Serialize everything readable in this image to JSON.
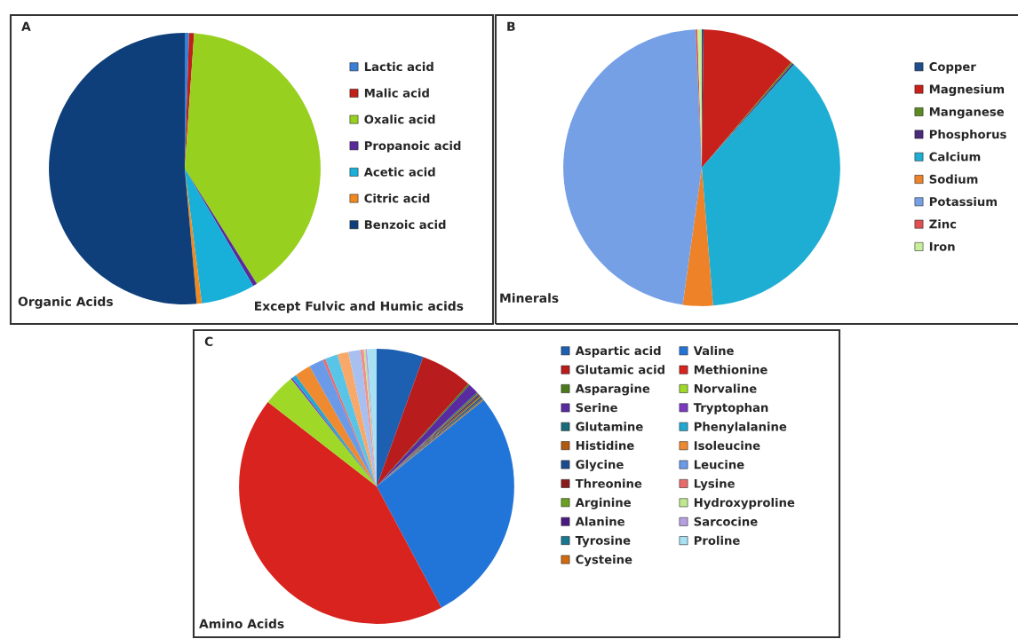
{
  "chart_data": [
    {
      "type": "pie",
      "title": "A",
      "legend": "right",
      "categories": [
        "Lactic acid",
        "Malic acid",
        "Oxalic acid",
        "Propanoic acid",
        "Acetic acid",
        "Citric acid",
        "Benzoic acid"
      ],
      "values": [
        0.5,
        0.6,
        40,
        0.5,
        6.4,
        0.6,
        51.4
      ],
      "colors": [
        "#3a7fd5",
        "#c0201a",
        "#98d020",
        "#5a2a9a",
        "#18b0d8",
        "#f08a20",
        "#0e3f7a"
      ],
      "annotations": [
        "Organic Acids",
        "Except Fulvic and Humic acids"
      ]
    },
    {
      "type": "pie",
      "title": "B",
      "legend": "right",
      "categories": [
        "Copper",
        "Magnesium",
        "Manganese",
        "Phosphorus",
        "Calcium",
        "Sodium",
        "Potassium",
        "Zinc",
        "Iron"
      ],
      "values": [
        0.2,
        11,
        0.2,
        0.2,
        37.1,
        3.5,
        47.1,
        0.2,
        0.5
      ],
      "colors": [
        "#1f4e8c",
        "#c8201a",
        "#5a8a20",
        "#4a2a7a",
        "#1eaed4",
        "#ee8228",
        "#76a0e6",
        "#e05050",
        "#c8f09a"
      ],
      "annotations": [
        "Minerals"
      ]
    },
    {
      "type": "pie",
      "title": "C",
      "legend": "right",
      "categories": [
        "Aspartic acid",
        "Glutamic acid",
        "Asparagine",
        "Serine",
        "Glutamine",
        "Histidine",
        "Glycine",
        "Threonine",
        "Arginine",
        "Alanine",
        "Tyrosine",
        "Cysteine",
        "Valine",
        "Methionine",
        "Norvaline",
        "Tryptophan",
        "Phenylalanine",
        "Isoleucine",
        "Leucine",
        "Lysine",
        null,
        null,
        null,
        null,
        "Hydroxyproline",
        "Sarcocine",
        "Proline"
      ],
      "values": [
        5.5,
        6.1,
        0.2,
        1.2,
        0.15,
        0.15,
        0.15,
        0.15,
        0.15,
        0.15,
        0.15,
        0.15,
        28.0,
        43.3,
        3.8,
        0.2,
        0.5,
        1.9,
        1.7,
        0.3,
        1.5,
        1.3,
        1.4,
        0.4,
        0.2,
        0.2,
        1.1
      ],
      "colors": [
        "#1d5fb0",
        "#b81c1c",
        "#4a7a1a",
        "#5a2aa0",
        "#1a6a7a",
        "#b05a10",
        "#1a4a90",
        "#8a1a1a",
        "#6aa020",
        "#4a1a80",
        "#187890",
        "#d06a10",
        "#2275d8",
        "#d8231e",
        "#a0d828",
        "#7a3ac0",
        "#20a8d0",
        "#f08a30",
        "#6a9ae8",
        "#e86a6a",
        "#58c4e8",
        "#f8a868",
        "#a8c0f0",
        "#f09090",
        "#c0e890",
        "#b8a0e0",
        "#a8e0f4"
      ],
      "annotations": [
        "Amino Acids"
      ]
    }
  ]
}
